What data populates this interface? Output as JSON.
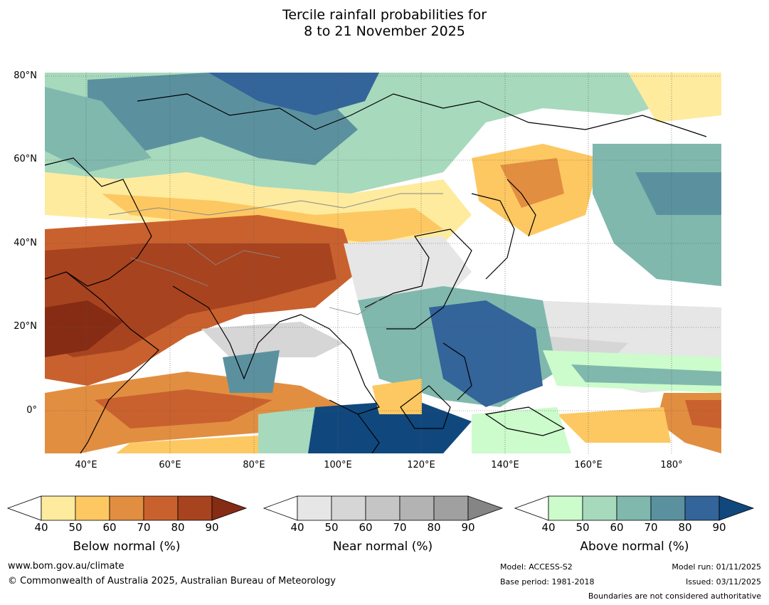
{
  "title_line1": "Tercile rainfall probabilities for",
  "title_line2": "8 to 21 November 2025",
  "lat_labels": [
    "80°N",
    "60°N",
    "40°N",
    "20°N",
    "0°"
  ],
  "lon_labels": [
    "40°E",
    "60°E",
    "80°E",
    "100°E",
    "120°E",
    "140°E",
    "160°E",
    "180°"
  ],
  "colorbars": [
    {
      "title": "Below normal (%)",
      "ticks": [
        "40",
        "50",
        "60",
        "70",
        "80",
        "90"
      ],
      "colors": [
        "#ffffff",
        "#feeb9e",
        "#fdc862",
        "#e28e41",
        "#c9612e",
        "#a8431f",
        "#862c14"
      ]
    },
    {
      "title": "Near normal (%)",
      "ticks": [
        "40",
        "50",
        "60",
        "70",
        "80",
        "90"
      ],
      "colors": [
        "#ffffff",
        "#e6e6e6",
        "#d6d6d6",
        "#c5c5c5",
        "#b3b3b3",
        "#a0a0a0",
        "#858585"
      ]
    },
    {
      "title": "Above normal (%)",
      "ticks": [
        "40",
        "50",
        "60",
        "70",
        "80",
        "90"
      ],
      "colors": [
        "#ffffff",
        "#ccfbcc",
        "#a7d9bd",
        "#80b8ad",
        "#5b919f",
        "#33649a",
        "#10487e"
      ]
    }
  ],
  "footer": {
    "website": "www.bom.gov.au/climate",
    "copyright": "© Commonwealth of Australia 2025, Australian Bureau of Meteorology",
    "model": "Model: ACCESS-S2",
    "base_period": "Base period: 1981-2018",
    "model_run": "Model run: 01/11/2025",
    "issued": "Issued: 03/11/2025",
    "disclaimer": "Boundaries are not considered authoritative"
  }
}
